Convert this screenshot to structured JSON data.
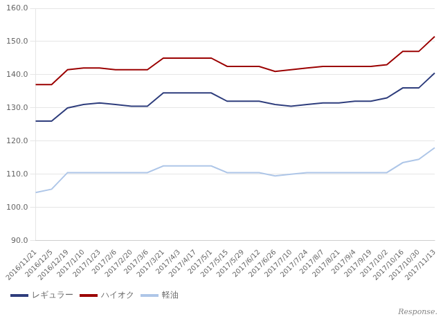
{
  "chart_data": {
    "type": "line",
    "categories": [
      "2016/11/21",
      "2016/12/5",
      "2016/12/19",
      "2017/1/10",
      "2017/1/23",
      "2017/2/6",
      "2017/2/20",
      "2017/3/6",
      "2017/3/21",
      "2017/4/3",
      "2017/4/17",
      "2017/5/1",
      "2017/5/15",
      "2017/5/29",
      "2017/6/12",
      "2017/6/26",
      "2017/7/10",
      "2017/7/24",
      "2017/8/7",
      "2017/8/21",
      "2017/9/4",
      "2017/9/19",
      "2017/10/2",
      "2017/10/16",
      "2017/10/30",
      "2017/11/13"
    ],
    "series": [
      {
        "name": "レギュラー",
        "color": "#2e3d7c",
        "values": [
          126.0,
          126.0,
          130.0,
          131.0,
          131.5,
          131.0,
          130.5,
          130.5,
          134.5,
          134.5,
          134.5,
          134.5,
          132.0,
          132.0,
          132.0,
          131.0,
          130.5,
          131.0,
          131.5,
          131.5,
          132.0,
          132.0,
          133.0,
          136.0,
          136.0,
          140.5
        ]
      },
      {
        "name": "ハイオク",
        "color": "#9b0000",
        "values": [
          137.0,
          137.0,
          141.5,
          142.0,
          142.0,
          141.5,
          141.5,
          141.5,
          145.0,
          145.0,
          145.0,
          145.0,
          142.5,
          142.5,
          142.5,
          141.0,
          141.5,
          142.0,
          142.5,
          142.5,
          142.5,
          142.5,
          143.0,
          147.0,
          147.0,
          151.5
        ]
      },
      {
        "name": "軽油",
        "color": "#aec6e8",
        "values": [
          104.5,
          105.5,
          110.5,
          110.5,
          110.5,
          110.5,
          110.5,
          110.5,
          112.5,
          112.5,
          112.5,
          112.5,
          110.5,
          110.5,
          110.5,
          109.5,
          110.0,
          110.5,
          110.5,
          110.5,
          110.5,
          110.5,
          110.5,
          113.5,
          114.5,
          118.0
        ]
      }
    ],
    "ylim": [
      90.0,
      160.0
    ],
    "yticks": [
      {
        "value": 90,
        "label": "90.0"
      },
      {
        "value": 100,
        "label": "100.0"
      },
      {
        "value": 110,
        "label": "110.0"
      },
      {
        "value": 120,
        "label": "120.0"
      },
      {
        "value": 130,
        "label": "130.0"
      },
      {
        "value": 140,
        "label": "140.0"
      },
      {
        "value": 150,
        "label": "150.0"
      },
      {
        "value": 160,
        "label": "160.0"
      }
    ],
    "grid": true,
    "legend": "lower left",
    "annotations": [
      "Response."
    ]
  }
}
